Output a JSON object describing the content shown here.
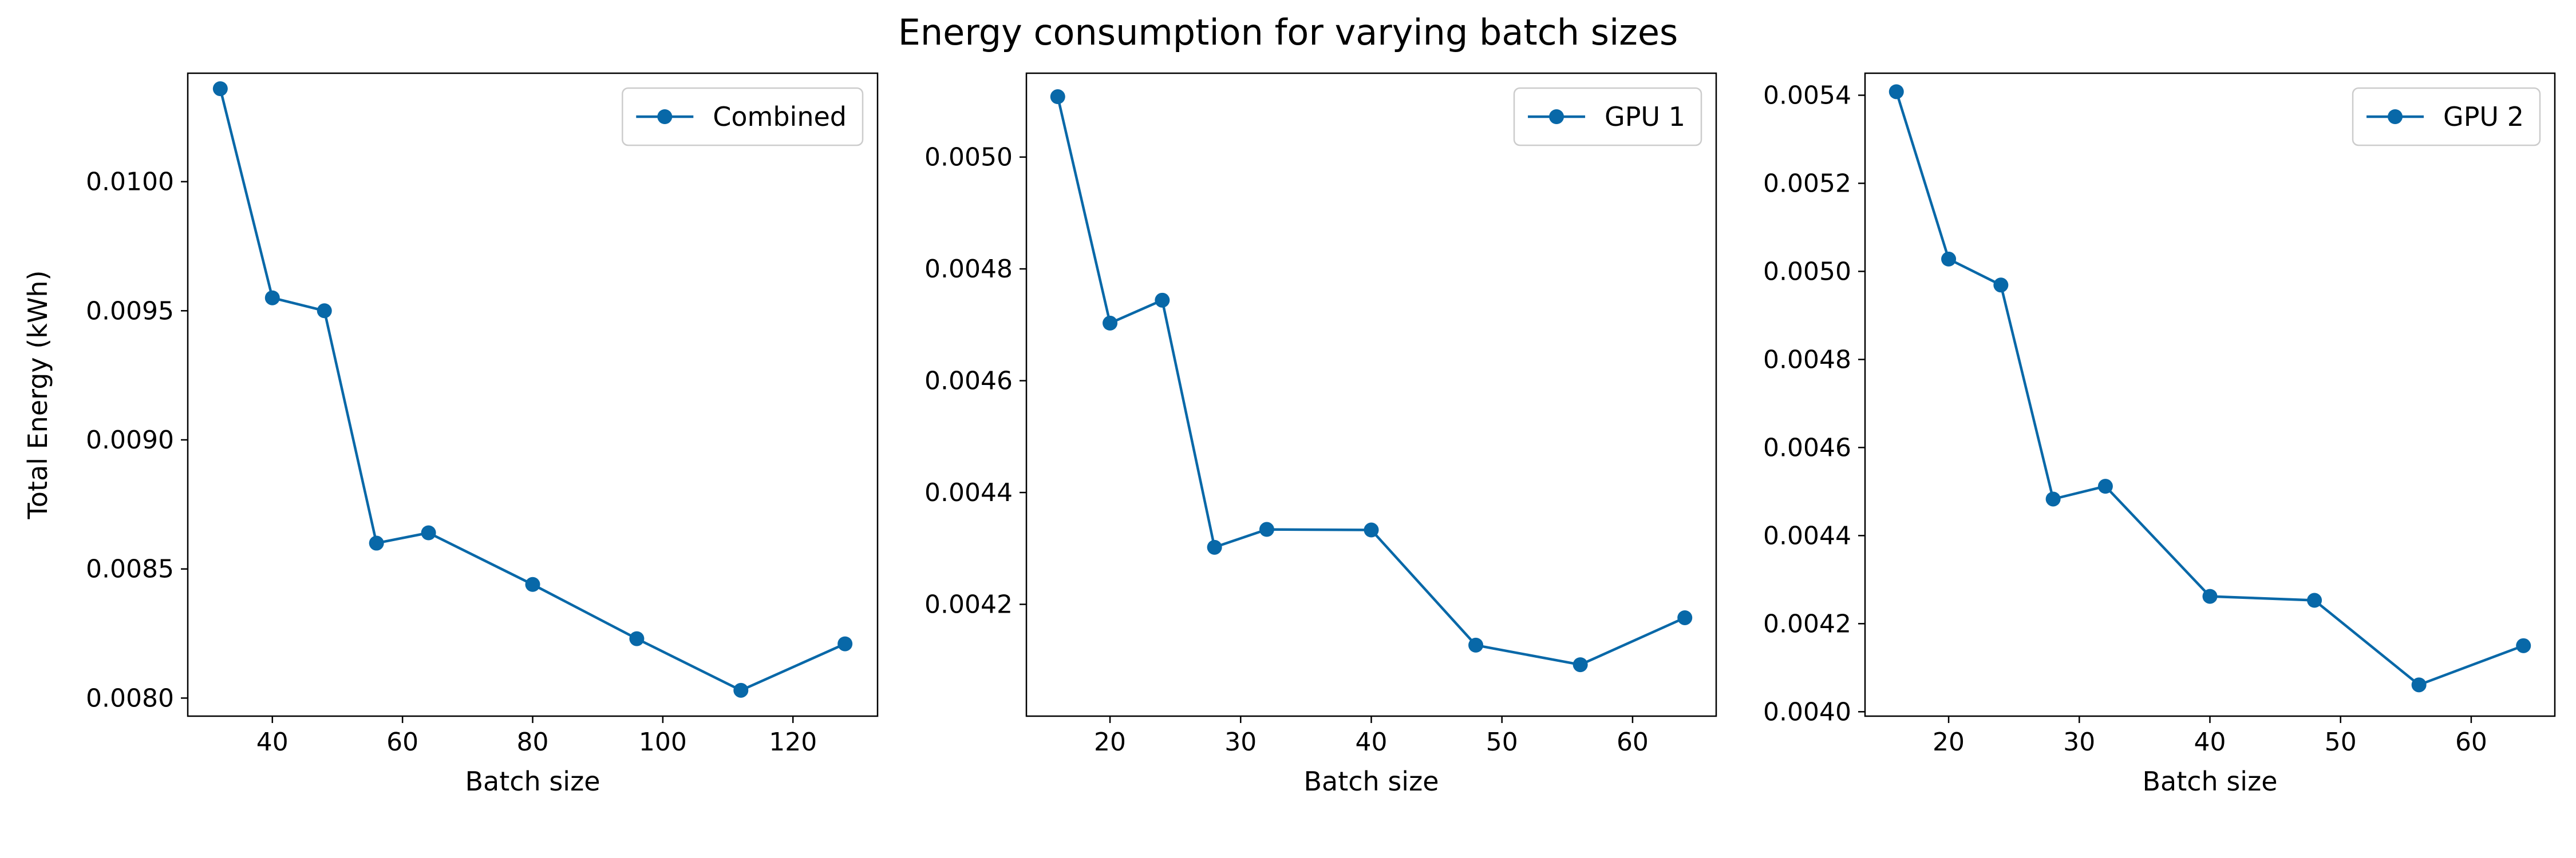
{
  "chart_data": {
    "title": "Energy consumption for varying batch sizes",
    "type": "line",
    "color": "#0868a8",
    "panels": [
      {
        "type": "line",
        "xlabel": "Batch size",
        "ylabel": "Total Energy (kWh)",
        "xlim": [
          27,
          133
        ],
        "ylim": [
          0.00793,
          0.01042
        ],
        "xticks": [
          40,
          60,
          80,
          100,
          120
        ],
        "yticks": [
          0.008,
          0.0085,
          0.009,
          0.0095,
          0.01
        ],
        "ytick_labels": [
          "0.0080",
          "0.0085",
          "0.0090",
          "0.0095",
          "0.0100"
        ],
        "legend": "upper right",
        "grid": false,
        "series": [
          {
            "name": "Combined",
            "x": [
              32,
              40,
              48,
              56,
              64,
              80,
              96,
              112,
              128
            ],
            "y": [
              0.01036,
              0.00955,
              0.0095,
              0.0086,
              0.00864,
              0.00844,
              0.00823,
              0.00803,
              0.00821
            ]
          }
        ]
      },
      {
        "type": "line",
        "xlabel": "Batch size",
        "ylabel": "",
        "xlim": [
          13.6,
          66.4
        ],
        "ylim": [
          0.004,
          0.00515
        ],
        "xticks": [
          20,
          30,
          40,
          50,
          60
        ],
        "yticks": [
          0.0042,
          0.0044,
          0.0046,
          0.0048,
          0.005
        ],
        "ytick_labels": [
          "0.0042",
          "0.0044",
          "0.0046",
          "0.0048",
          "0.0050"
        ],
        "legend": "upper right",
        "grid": false,
        "series": [
          {
            "name": "GPU 1",
            "x": [
              16,
              20,
              24,
              28,
              32,
              40,
              48,
              56,
              64
            ],
            "y": [
              0.005108,
              0.004703,
              0.004744,
              0.004302,
              0.004334,
              0.004333,
              0.004127,
              0.004092,
              0.004176
            ]
          }
        ]
      },
      {
        "type": "line",
        "xlabel": "Batch size",
        "ylabel": "",
        "xlim": [
          13.6,
          66.4
        ],
        "ylim": [
          0.00399,
          0.00545
        ],
        "xticks": [
          20,
          30,
          40,
          50,
          60
        ],
        "yticks": [
          0.004,
          0.0042,
          0.0044,
          0.0046,
          0.0048,
          0.005,
          0.0052,
          0.0054
        ],
        "ytick_labels": [
          "0.0040",
          "0.0042",
          "0.0044",
          "0.0046",
          "0.0048",
          "0.0050",
          "0.0052",
          "0.0054"
        ],
        "legend": "upper right",
        "grid": false,
        "series": [
          {
            "name": "GPU 2",
            "x": [
              16,
              20,
              24,
              28,
              32,
              40,
              48,
              56,
              64
            ],
            "y": [
              0.005408,
              0.005028,
              0.004969,
              0.004483,
              0.004512,
              0.004262,
              0.004253,
              0.004061,
              0.00415
            ]
          }
        ]
      }
    ]
  }
}
